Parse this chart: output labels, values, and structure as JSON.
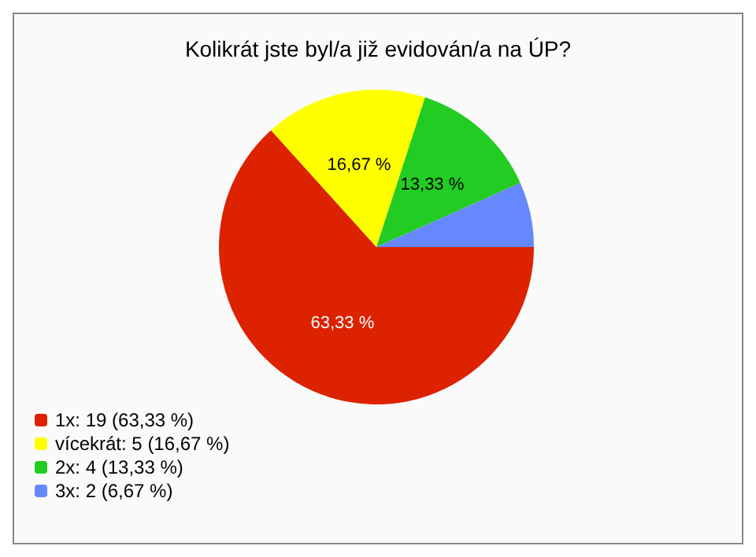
{
  "chart_data": {
    "type": "pie",
    "title": "Kolikrát jste byl/a již evidován/a na ÚP?",
    "categories": [
      "1x: 19 (63,33 %)",
      "vícekrát: 5 (16,67 %)",
      "2x: 4 (13,33 %)",
      "3x: 2 (6,67 %)"
    ],
    "values": [
      63.33,
      16.67,
      13.33,
      6.67
    ],
    "value_labels": [
      "63,33 %",
      "16,67 %",
      "13,33 %",
      null
    ],
    "colors": [
      "#dd2200",
      "#ffff00",
      "#22cc22",
      "#6688ff"
    ],
    "legend": "bottom left"
  }
}
